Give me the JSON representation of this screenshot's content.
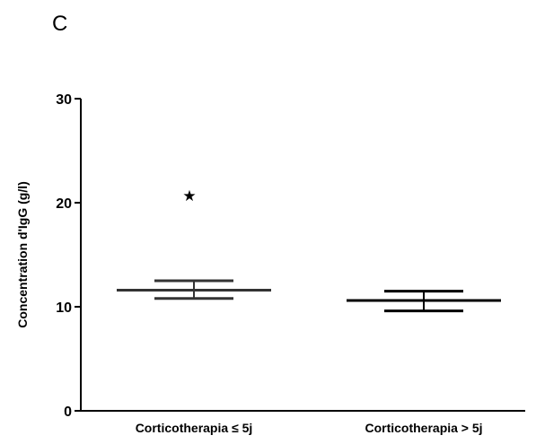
{
  "panel_label": "C",
  "chart_data": {
    "type": "scatter",
    "ylabel": "Concentration d'IgG (g/l)",
    "xlabel": "",
    "ylim": [
      0,
      30
    ],
    "y_ticks": [
      "0",
      "10",
      "20",
      "30"
    ],
    "grid": false,
    "legend": "none",
    "categories": [
      "Corticotherapia ≤ 5j",
      "Corticotherapia > 5j"
    ],
    "series": [
      {
        "mean": [
          11.6,
          10.6
        ],
        "error_upper": [
          12.5,
          11.5
        ],
        "error_lower": [
          10.8,
          9.6
        ]
      }
    ],
    "outliers": [
      {
        "category_index": 0,
        "value": 20.7,
        "marker": "★"
      }
    ]
  }
}
